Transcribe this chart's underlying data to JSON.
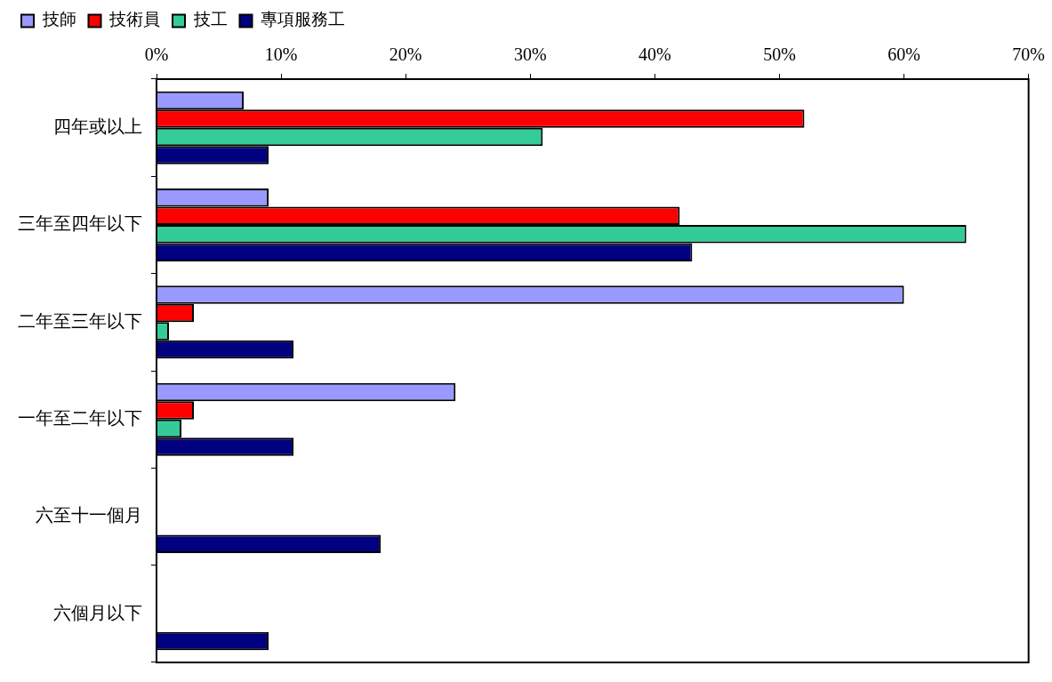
{
  "chart_data": {
    "type": "bar",
    "orientation": "horizontal",
    "categories": [
      "四年或以上",
      "三年至四年以下",
      "二年至三年以下",
      "一年至二年以下",
      "六至十一個月",
      "六個月以下"
    ],
    "series": [
      {
        "name": "技師",
        "color": "#9999ff",
        "values": [
          7,
          9,
          60,
          24,
          0,
          0
        ]
      },
      {
        "name": "技術員",
        "color": "#ff0000",
        "values": [
          52,
          42,
          3,
          3,
          0,
          0
        ]
      },
      {
        "name": "技工",
        "color": "#33cc99",
        "values": [
          31,
          65,
          1,
          2,
          0,
          0
        ]
      },
      {
        "name": "專項服務工",
        "color": "#000080",
        "values": [
          9,
          43,
          11,
          11,
          18,
          9
        ]
      }
    ],
    "xlim": [
      0,
      70
    ],
    "xticks": [
      {
        "value": 0,
        "label": "0%"
      },
      {
        "value": 10,
        "label": "10%"
      },
      {
        "value": 20,
        "label": "20%"
      },
      {
        "value": 30,
        "label": "30%"
      },
      {
        "value": 40,
        "label": "40%"
      },
      {
        "value": 50,
        "label": "50%"
      },
      {
        "value": 60,
        "label": "60%"
      },
      {
        "value": 70,
        "label": "70%"
      }
    ],
    "grid": false,
    "legend": "top left"
  }
}
